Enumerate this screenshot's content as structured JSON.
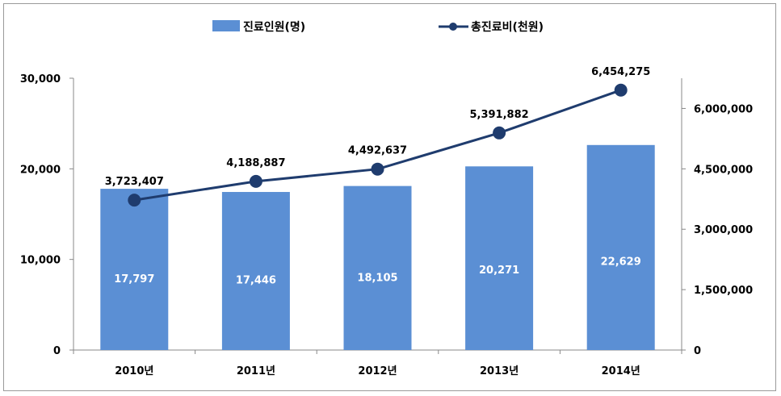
{
  "chart_data": {
    "type": "bar",
    "categories": [
      "2010년",
      "2011년",
      "2012년",
      "2013년",
      "2014년"
    ],
    "series": [
      {
        "name": "진료인원(명)",
        "type": "bar",
        "axis": "left",
        "values": [
          17797,
          17446,
          18105,
          20271,
          22629
        ],
        "labels": [
          "17,797",
          "17,446",
          "18,105",
          "20,271",
          "22,629"
        ]
      },
      {
        "name": "총진료비(천원)",
        "type": "line",
        "axis": "right",
        "values": [
          3723407,
          4188887,
          4492637,
          5391882,
          6454275
        ],
        "labels": [
          "3,723,407",
          "4,188,887",
          "4,492,637",
          "5,391,882",
          "6,454,275"
        ]
      }
    ],
    "left_axis": {
      "ylim": [
        0,
        30000
      ],
      "ticks": [
        0,
        10000,
        20000,
        30000
      ],
      "tick_labels": [
        "0",
        "10,000",
        "20,000",
        "30,000"
      ]
    },
    "right_axis": {
      "ylim": [
        0,
        6750000
      ],
      "ticks": [
        0,
        1500000,
        3000000,
        4500000,
        6000000
      ],
      "tick_labels": [
        "0",
        "1,500,000",
        "3,000,000",
        "4,500,000",
        "6,000,000"
      ]
    },
    "legend_position": "top-center",
    "grid": false
  },
  "colors": {
    "bar": "#5b8fd4",
    "line": "#1f3c6e",
    "marker": "#1f3c6e",
    "axis": "#888888"
  }
}
